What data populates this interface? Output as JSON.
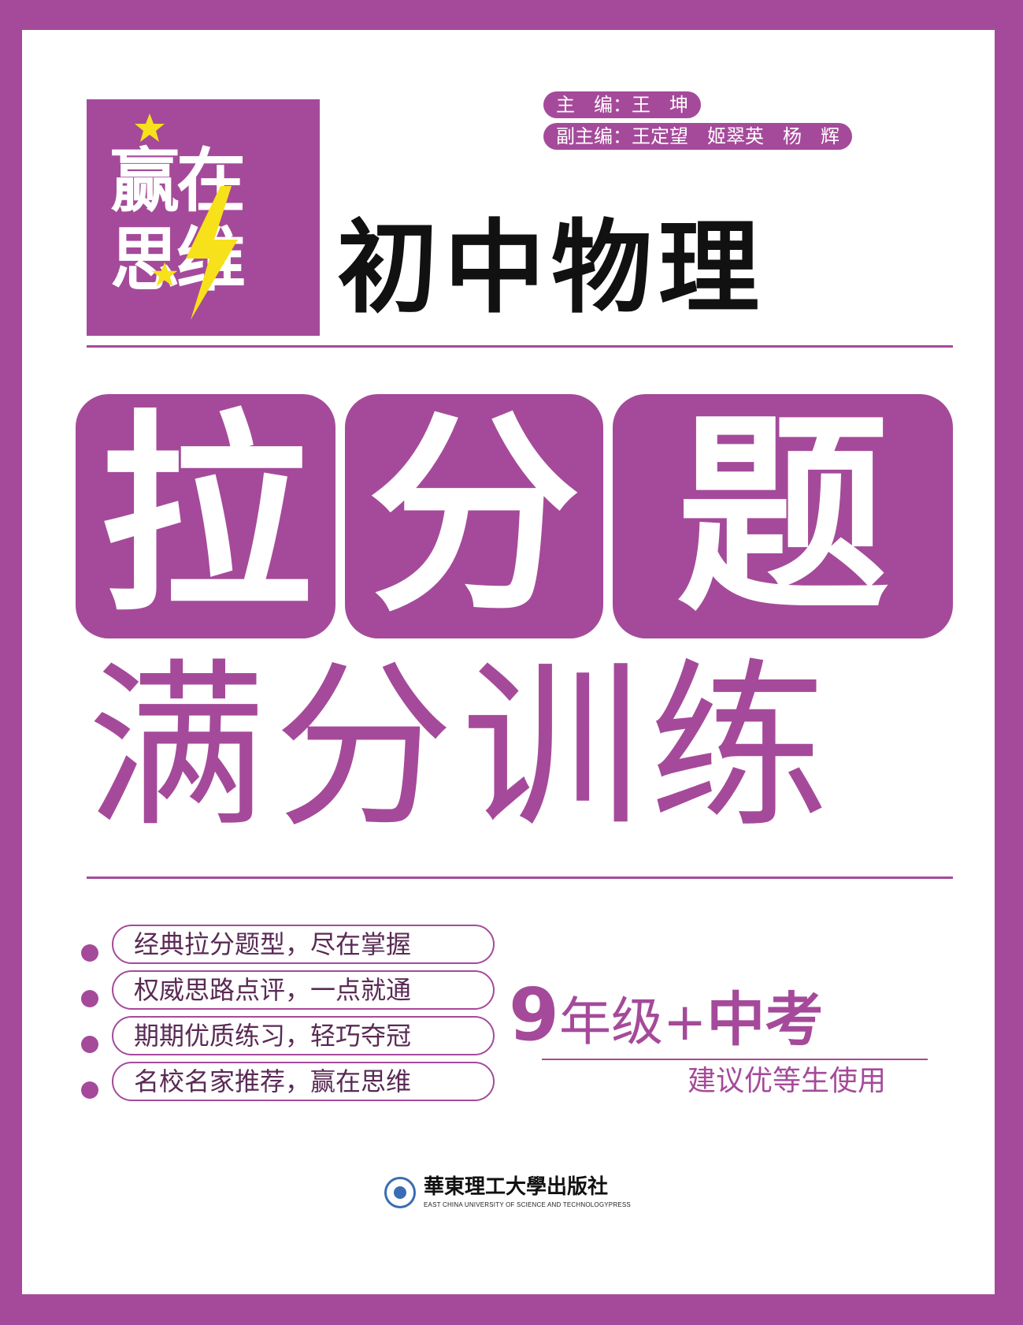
{
  "logo": {
    "line1": "赢在",
    "line2": "思维",
    "colors": {
      "star": "#f7e11a",
      "bolt": "#f7e11a",
      "bg": "#a54a9a"
    }
  },
  "editors": {
    "chief": "主　编：王　坤",
    "deputy": "副主编：王定望　姬翠英　杨　辉"
  },
  "subject": "初中物理",
  "title_chars": [
    "拉",
    "分",
    "题"
  ],
  "subtitle": "满分训练",
  "features": [
    "经典拉分题型，尽在掌握",
    "权威思路点评，一点就通",
    "期期优质练习，轻巧夺冠",
    "名校名家推荐，赢在思维"
  ],
  "grade": {
    "number": "9",
    "grade_text": "年级+",
    "exam": "中考",
    "recommend": "建议优等生使用"
  },
  "publisher": {
    "name": "華東理工大學出版社",
    "english": "EAST CHINA UNIVERSITY OF SCIENCE AND TECHNOLOGYPRESS",
    "emblem": "university-seal-icon"
  },
  "theme": {
    "accent": "#a54a9a",
    "text": "#111111"
  }
}
